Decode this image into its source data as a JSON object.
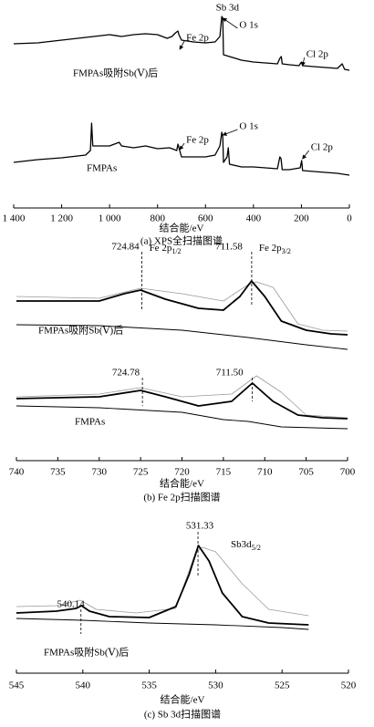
{
  "chart_data": [
    {
      "type": "line",
      "xlim": [
        1400,
        0
      ],
      "ylim": [
        0,
        110
      ],
      "xticks": [
        {
          "value": 1400,
          "label": "1 400"
        },
        {
          "value": 1200,
          "label": "1 200"
        },
        {
          "value": 1000,
          "label": "1 000"
        },
        800,
        600,
        400,
        200,
        0
      ],
      "xlabel": "结合能/eV",
      "caption": "(a)  XPS全扫描图谱",
      "groups": [
        {
          "name": "FMPAs吸附Sb(Ⅴ)后",
          "curves": [
            {
              "color": "#000000",
              "width": 1.3,
              "x": [
                1400,
                1300,
                1200,
                1100,
                1000,
                950,
                900,
                850,
                800,
                760,
                740,
                725,
                715,
                711,
                700,
                650,
                600,
                560,
                540,
                532,
                528,
                525,
                500,
                450,
                400,
                350,
                300,
                290,
                284,
                280,
                250,
                210,
                200,
                195,
                150,
                100,
                50,
                30,
                20,
                0
              ],
              "values": [
                90,
                90.5,
                92,
                93.5,
                95,
                94,
                95,
                95.5,
                95,
                93,
                94,
                96,
                97,
                95,
                92,
                91,
                90.5,
                91,
                94,
                105,
                104,
                84,
                83,
                81,
                80,
                79.5,
                79,
                82,
                83,
                79,
                78.5,
                78,
                80,
                78,
                77.5,
                77,
                76.5,
                79,
                76,
                75.5
              ]
            }
          ],
          "annotations": [
            {
              "text": "Sb 3d",
              "x": 530
            },
            {
              "text": "O 1s",
              "x": 531
            },
            {
              "text": "Fe 2p",
              "x": 711
            },
            {
              "text": "Cl 2p",
              "x": 199
            }
          ]
        },
        {
          "name": "FMPAs",
          "curves": [
            {
              "color": "#000000",
              "width": 1.3,
              "x": [
                1400,
                1300,
                1200,
                1100,
                1080,
                1075,
                1070,
                1000,
                980,
                960,
                950,
                900,
                850,
                800,
                750,
                720,
                715,
                711,
                700,
                650,
                600,
                560,
                540,
                532,
                528,
                525,
                510,
                505,
                500,
                450,
                400,
                350,
                300,
                290,
                285,
                280,
                250,
                205,
                199,
                195,
                100,
                50,
                0
              ],
              "values": [
                25,
                26.5,
                27.5,
                29,
                31.5,
                46.5,
                34,
                34,
                35,
                36,
                34,
                33,
                34,
                32.5,
                33,
                31.5,
                35,
                33,
                28,
                28,
                28,
                29,
                34,
                41.5,
                39,
                25,
                28,
                33,
                24,
                22.5,
                22.5,
                22,
                21.5,
                28,
                27,
                21,
                21,
                22,
                26,
                20.5,
                19.5,
                19,
                18
              ]
            }
          ],
          "annotations": [
            {
              "text": "Fe 2p",
              "x": 711
            },
            {
              "text": "O 1s",
              "x": 531
            },
            {
              "text": "Cl 2p",
              "x": 199
            }
          ]
        }
      ]
    },
    {
      "type": "line",
      "xlim": [
        740,
        700
      ],
      "ylim": [
        0,
        110
      ],
      "xticks": [
        740,
        735,
        730,
        725,
        720,
        715,
        710,
        705,
        700
      ],
      "xlabel": "结合能/eV",
      "caption": "(b)  Fe 2p扫描图谱",
      "groups": [
        {
          "name": "FMPAs吸附Sb(Ⅴ)后",
          "curves": [
            {
              "color": "#9a9a9a",
              "width": 0.8,
              "x": [
                740,
                730,
                725,
                720,
                715,
                712,
                711,
                709,
                706,
                703,
                700
              ],
              "values": [
                90,
                89,
                94.5,
                91.5,
                87.5,
                96.5,
                98,
                95,
                75,
                71.5,
                71
              ]
            },
            {
              "color": "#000000",
              "width": 0.9,
              "x": [
                740,
                730,
                720,
                712,
                705,
                700
              ],
              "values": [
                74.5,
                74,
                71.5,
                67.5,
                63.5,
                61
              ]
            },
            {
              "color": "#000000",
              "width": 1.8,
              "x": [
                740,
                730,
                727,
                725,
                722,
                718,
                715,
                713,
                711.6,
                710,
                708,
                705,
                702,
                700
              ],
              "values": [
                87.5,
                87.5,
                91.5,
                93.5,
                88.5,
                83.5,
                82.5,
                90,
                98.5,
                90,
                76.5,
                71.5,
                69.5,
                69
              ]
            }
          ],
          "peaks": [
            {
              "x": 724.84,
              "x_label": "724.84",
              "label": "Fe 2p",
              "sub": "1/2"
            },
            {
              "x": 711.58,
              "x_label": "711.58",
              "label": "Fe 2p",
              "sub": "3/2"
            }
          ]
        },
        {
          "name": "FMPAs",
          "curves": [
            {
              "color": "#9a9a9a",
              "width": 0.8,
              "x": [
                740,
                730,
                725,
                720,
                714,
                711,
                708,
                705,
                700
              ],
              "values": [
                35,
                36.5,
                40,
                35,
                36.5,
                46.5,
                37.5,
                25,
                23.5
              ]
            },
            {
              "color": "#000000",
              "width": 0.9,
              "x": [
                740,
                730,
                720,
                715,
                712,
                708,
                700
              ],
              "values": [
                30,
                29,
                26.5,
                22.5,
                21.5,
                18.5,
                17.5
              ]
            },
            {
              "color": "#000000",
              "width": 1.8,
              "x": [
                740,
                730,
                725,
                722,
                718,
                714,
                711.5,
                709,
                706,
                703,
                700
              ],
              "values": [
                34,
                35,
                38.5,
                35,
                30,
                32.5,
                42.5,
                32.5,
                25,
                23.5,
                23
              ]
            }
          ],
          "peaks": [
            {
              "x": 724.78,
              "x_label": "724.78"
            },
            {
              "x": 711.5,
              "x_label": "711.50"
            }
          ]
        }
      ]
    },
    {
      "type": "line",
      "xlim": [
        545,
        520
      ],
      "ylim": [
        0,
        90
      ],
      "xticks": [
        545,
        540,
        535,
        530,
        525,
        520
      ],
      "xlabel": "结合能/eV",
      "caption": "(c)  Sb 3d扫描图谱",
      "groups": [
        {
          "name": "FMPAs吸附Sb(Ⅴ)后",
          "curves": [
            {
              "color": "#9a9a9a",
              "width": 0.8,
              "x": [
                545,
                542,
                540.2,
                539,
                536,
                533,
                531.5,
                531,
                530,
                528,
                526,
                523
              ],
              "values": [
                36.5,
                37,
                40,
                35,
                33,
                35.5,
                66.5,
                69,
                66.5,
                49,
                35,
                31.5
              ]
            },
            {
              "color": "#000000",
              "width": 0.9,
              "x": [
                545,
                540,
                535,
                530,
                525,
                523
              ],
              "values": [
                30,
                29,
                27.5,
                26.5,
                25,
                24
              ]
            },
            {
              "color": "#000000",
              "width": 1.8,
              "x": [
                545,
                542,
                540.5,
                540.1,
                539.5,
                538,
                535,
                533,
                532,
                531.3,
                530.5,
                529.5,
                528,
                526,
                523
              ],
              "values": [
                33,
                34,
                35.5,
                37,
                34,
                31,
                30.5,
                36.5,
                54,
                70,
                61.5,
                44,
                31,
                27.5,
                26.5
              ]
            }
          ],
          "peaks": [
            {
              "x": 540.14,
              "x_label": "540.14"
            },
            {
              "x": 531.33,
              "x_label": "531.33",
              "label": "Sb3d",
              "sub": "5/2"
            }
          ]
        }
      ]
    }
  ]
}
